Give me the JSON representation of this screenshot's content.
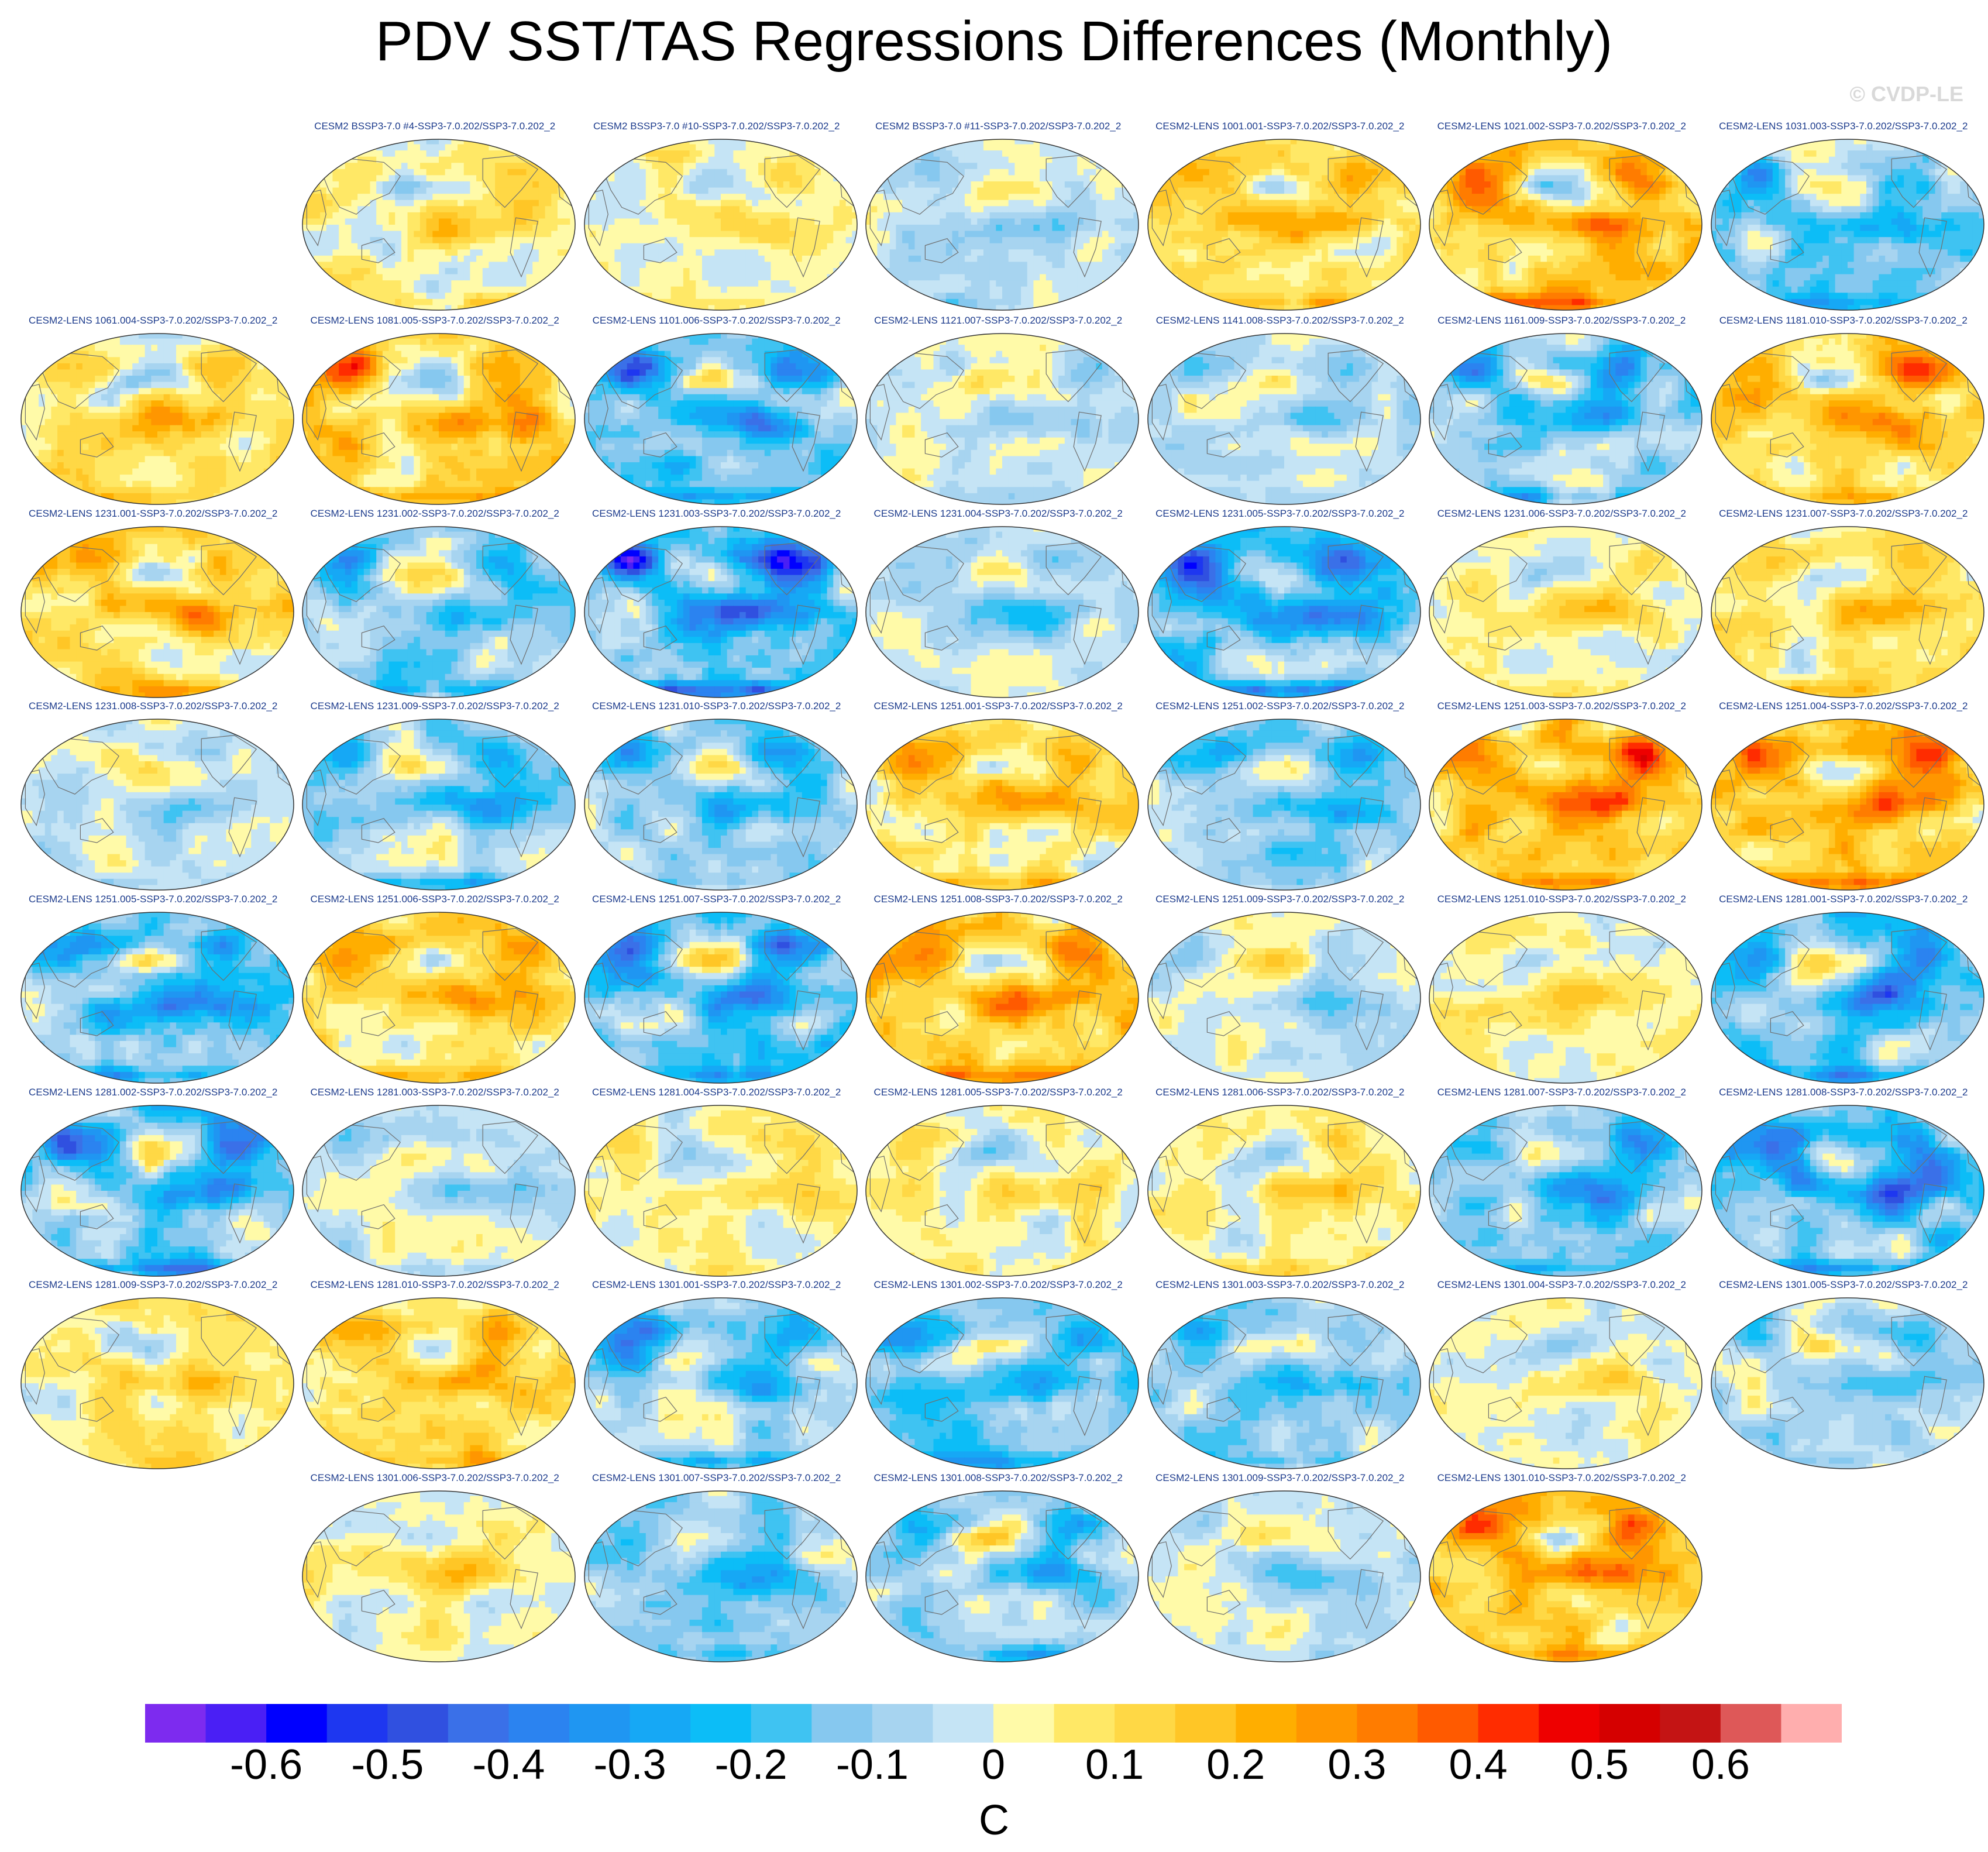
{
  "title": "PDV SST/TAS Regressions Differences (Monthly)",
  "watermark": "© CVDP-LE",
  "chart_data": {
    "type": "heatmap",
    "title": "PDV SST/TAS Regressions Differences (Monthly)",
    "units": "C",
    "projection": "Robinson (global map panels, Pacific-centered)",
    "colorbar": {
      "levels": [
        -0.65,
        -0.6,
        -0.55,
        -0.5,
        -0.45,
        -0.4,
        -0.35,
        -0.3,
        -0.25,
        -0.2,
        -0.15,
        -0.1,
        -0.05,
        0,
        0.05,
        0.1,
        0.15,
        0.2,
        0.25,
        0.3,
        0.35,
        0.4,
        0.45,
        0.5,
        0.55,
        0.6,
        0.65
      ],
      "colors": [
        "#7d2bef",
        "#4a1ff5",
        "#0000ff",
        "#1e37f0",
        "#3050e0",
        "#3a70e8",
        "#2b83f0",
        "#1f96f2",
        "#16a8f5",
        "#0cbdf7",
        "#3fc3f2",
        "#86c8ef",
        "#a7d4f0",
        "#c5e4f5",
        "#fffaa8",
        "#ffe866",
        "#ffd845",
        "#ffc626",
        "#ffae00",
        "#ff9600",
        "#ff7c00",
        "#ff5a00",
        "#ff2c00",
        "#ee0000",
        "#d50000",
        "#c41414",
        "#de5858",
        "#ffaeae"
      ],
      "tick_labels": [
        "-0.6",
        "-0.5",
        "-0.4",
        "-0.3",
        "-0.2",
        "-0.1",
        "0",
        "0.1",
        "0.2",
        "0.3",
        "0.4",
        "0.5",
        "0.6"
      ],
      "ticks": [
        -0.6,
        -0.5,
        -0.4,
        -0.3,
        -0.2,
        -0.1,
        0,
        0.1,
        0.2,
        0.3,
        0.4,
        0.5,
        0.6
      ]
    },
    "panels": [
      {
        "label": "CESM2 BSSP3-7.0 #4-SSP3-7.0.202/SSP3-7.0.202_2",
        "row": 0,
        "col": 1,
        "amplitude": 0.18
      },
      {
        "label": "CESM2 BSSP3-7.0 #10-SSP3-7.0.202/SSP3-7.0.202_2",
        "row": 0,
        "col": 2,
        "amplitude": 0.08
      },
      {
        "label": "CESM2 BSSP3-7.0 #11-SSP3-7.0.202/SSP3-7.0.202_2",
        "row": 0,
        "col": 3,
        "amplitude": -0.12
      },
      {
        "label": "CESM2-LENS 1001.001-SSP3-7.0.202/SSP3-7.0.202_2",
        "row": 0,
        "col": 4,
        "amplitude": 0.3
      },
      {
        "label": "CESM2-LENS 1021.002-SSP3-7.0.202/SSP3-7.0.202_2",
        "row": 0,
        "col": 5,
        "amplitude": 0.5
      },
      {
        "label": "CESM2-LENS 1031.003-SSP3-7.0.202/SSP3-7.0.202_2",
        "row": 0,
        "col": 6,
        "amplitude": -0.32
      },
      {
        "label": "CESM2-LENS 1061.004-SSP3-7.0.202/SSP3-7.0.202_2",
        "row": 1,
        "col": 0,
        "amplitude": 0.22
      },
      {
        "label": "CESM2-LENS 1081.005-SSP3-7.0.202/SSP3-7.0.202_2",
        "row": 1,
        "col": 1,
        "amplitude": 0.42
      },
      {
        "label": "CESM2-LENS 1101.006-SSP3-7.0.202/SSP3-7.0.202_2",
        "row": 1,
        "col": 2,
        "amplitude": -0.5
      },
      {
        "label": "CESM2-LENS 1121.007-SSP3-7.0.202/SSP3-7.0.202_2",
        "row": 1,
        "col": 3,
        "amplitude": -0.1
      },
      {
        "label": "CESM2-LENS 1141.008-SSP3-7.0.202/SSP3-7.0.202_2",
        "row": 1,
        "col": 4,
        "amplitude": -0.15
      },
      {
        "label": "CESM2-LENS 1161.009-SSP3-7.0.202/SSP3-7.0.202_2",
        "row": 1,
        "col": 5,
        "amplitude": -0.38
      },
      {
        "label": "CESM2-LENS 1181.010-SSP3-7.0.202/SSP3-7.0.202_2",
        "row": 1,
        "col": 6,
        "amplitude": 0.35
      },
      {
        "label": "CESM2-LENS 1231.001-SSP3-7.0.202/SSP3-7.0.202_2",
        "row": 2,
        "col": 0,
        "amplitude": 0.34
      },
      {
        "label": "CESM2-LENS 1231.002-SSP3-7.0.202/SSP3-7.0.202_2",
        "row": 2,
        "col": 1,
        "amplitude": -0.36
      },
      {
        "label": "CESM2-LENS 1231.003-SSP3-7.0.202/SSP3-7.0.202_2",
        "row": 2,
        "col": 2,
        "amplitude": -0.62
      },
      {
        "label": "CESM2-LENS 1231.004-SSP3-7.0.202/SSP3-7.0.202_2",
        "row": 2,
        "col": 3,
        "amplitude": -0.1
      },
      {
        "label": "CESM2-LENS 1231.005-SSP3-7.0.202/SSP3-7.0.202_2",
        "row": 2,
        "col": 4,
        "amplitude": -0.55
      },
      {
        "label": "CESM2-LENS 1231.006-SSP3-7.0.202/SSP3-7.0.202_2",
        "row": 2,
        "col": 5,
        "amplitude": 0.06
      },
      {
        "label": "CESM2-LENS 1231.007-SSP3-7.0.202/SSP3-7.0.202_2",
        "row": 2,
        "col": 6,
        "amplitude": 0.2
      },
      {
        "label": "CESM2-LENS 1231.008-SSP3-7.0.202/SSP3-7.0.202_2",
        "row": 3,
        "col": 0,
        "amplitude": -0.08
      },
      {
        "label": "CESM2-LENS 1231.009-SSP3-7.0.202/SSP3-7.0.202_2",
        "row": 3,
        "col": 1,
        "amplitude": -0.3
      },
      {
        "label": "CESM2-LENS 1231.010-SSP3-7.0.202/SSP3-7.0.202_2",
        "row": 3,
        "col": 2,
        "amplitude": -0.3
      },
      {
        "label": "CESM2-LENS 1251.001-SSP3-7.0.202/SSP3-7.0.202_2",
        "row": 3,
        "col": 3,
        "amplitude": 0.3
      },
      {
        "label": "CESM2-LENS 1251.002-SSP3-7.0.202/SSP3-7.0.202_2",
        "row": 3,
        "col": 4,
        "amplitude": -0.3
      },
      {
        "label": "CESM2-LENS 1251.003-SSP3-7.0.202/SSP3-7.0.202_2",
        "row": 3,
        "col": 5,
        "amplitude": 0.5
      },
      {
        "label": "CESM2-LENS 1251.004-SSP3-7.0.202/SSP3-7.0.202_2",
        "row": 3,
        "col": 6,
        "amplitude": 0.42
      },
      {
        "label": "CESM2-LENS 1251.005-SSP3-7.0.202/SSP3-7.0.202_2",
        "row": 4,
        "col": 0,
        "amplitude": -0.5
      },
      {
        "label": "CESM2-LENS 1251.006-SSP3-7.0.202/SSP3-7.0.202_2",
        "row": 4,
        "col": 1,
        "amplitude": 0.34
      },
      {
        "label": "CESM2-LENS 1251.007-SSP3-7.0.202/SSP3-7.0.202_2",
        "row": 4,
        "col": 2,
        "amplitude": -0.44
      },
      {
        "label": "CESM2-LENS 1251.008-SSP3-7.0.202/SSP3-7.0.202_2",
        "row": 4,
        "col": 3,
        "amplitude": 0.48
      },
      {
        "label": "CESM2-LENS 1251.009-SSP3-7.0.202/SSP3-7.0.202_2",
        "row": 4,
        "col": 4,
        "amplitude": -0.08
      },
      {
        "label": "CESM2-LENS 1251.010-SSP3-7.0.202/SSP3-7.0.202_2",
        "row": 4,
        "col": 5,
        "amplitude": 0.08
      },
      {
        "label": "CESM2-LENS 1281.001-SSP3-7.0.202/SSP3-7.0.202_2",
        "row": 4,
        "col": 6,
        "amplitude": -0.46
      },
      {
        "label": "CESM2-LENS 1281.002-SSP3-7.0.202/SSP3-7.0.202_2",
        "row": 5,
        "col": 0,
        "amplitude": -0.55
      },
      {
        "label": "CESM2-LENS 1281.003-SSP3-7.0.202/SSP3-7.0.202_2",
        "row": 5,
        "col": 1,
        "amplitude": -0.1
      },
      {
        "label": "CESM2-LENS 1281.004-SSP3-7.0.202/SSP3-7.0.202_2",
        "row": 5,
        "col": 2,
        "amplitude": 0.1
      },
      {
        "label": "CESM2-LENS 1281.005-SSP3-7.0.202/SSP3-7.0.202_2",
        "row": 5,
        "col": 3,
        "amplitude": 0.08
      },
      {
        "label": "CESM2-LENS 1281.006-SSP3-7.0.202/SSP3-7.0.202_2",
        "row": 5,
        "col": 4,
        "amplitude": 0.14
      },
      {
        "label": "CESM2-LENS 1281.007-SSP3-7.0.202/SSP3-7.0.202_2",
        "row": 5,
        "col": 5,
        "amplitude": -0.4
      },
      {
        "label": "CESM2-LENS 1281.008-SSP3-7.0.202/SSP3-7.0.202_2",
        "row": 5,
        "col": 6,
        "amplitude": -0.58
      },
      {
        "label": "CESM2-LENS 1281.009-SSP3-7.0.202/SSP3-7.0.202_2",
        "row": 6,
        "col": 0,
        "amplitude": 0.16
      },
      {
        "label": "CESM2-LENS 1281.010-SSP3-7.0.202/SSP3-7.0.202_2",
        "row": 6,
        "col": 1,
        "amplitude": 0.3
      },
      {
        "label": "CESM2-LENS 1301.001-SSP3-7.0.202/SSP3-7.0.202_2",
        "row": 6,
        "col": 2,
        "amplitude": -0.38
      },
      {
        "label": "CESM2-LENS 1301.002-SSP3-7.0.202/SSP3-7.0.202_2",
        "row": 6,
        "col": 3,
        "amplitude": -0.36
      },
      {
        "label": "CESM2-LENS 1301.003-SSP3-7.0.202/SSP3-7.0.202_2",
        "row": 6,
        "col": 4,
        "amplitude": -0.3
      },
      {
        "label": "CESM2-LENS 1301.004-SSP3-7.0.202/SSP3-7.0.202_2",
        "row": 6,
        "col": 5,
        "amplitude": 0.06
      },
      {
        "label": "CESM2-LENS 1301.005-SSP3-7.0.202/SSP3-7.0.202_2",
        "row": 6,
        "col": 6,
        "amplitude": -0.2
      },
      {
        "label": "CESM2-LENS 1301.006-SSP3-7.0.202/SSP3-7.0.202_2",
        "row": 7,
        "col": 1,
        "amplitude": 0.08
      },
      {
        "label": "CESM2-LENS 1301.007-SSP3-7.0.202/SSP3-7.0.202_2",
        "row": 7,
        "col": 2,
        "amplitude": -0.26
      },
      {
        "label": "CESM2-LENS 1301.008-SSP3-7.0.202/SSP3-7.0.202_2",
        "row": 7,
        "col": 3,
        "amplitude": -0.34
      },
      {
        "label": "CESM2-LENS 1301.009-SSP3-7.0.202/SSP3-7.0.202_2",
        "row": 7,
        "col": 4,
        "amplitude": -0.08
      },
      {
        "label": "CESM2-LENS 1301.010-SSP3-7.0.202/SSP3-7.0.202_2",
        "row": 7,
        "col": 5,
        "amplitude": 0.45
      }
    ]
  }
}
